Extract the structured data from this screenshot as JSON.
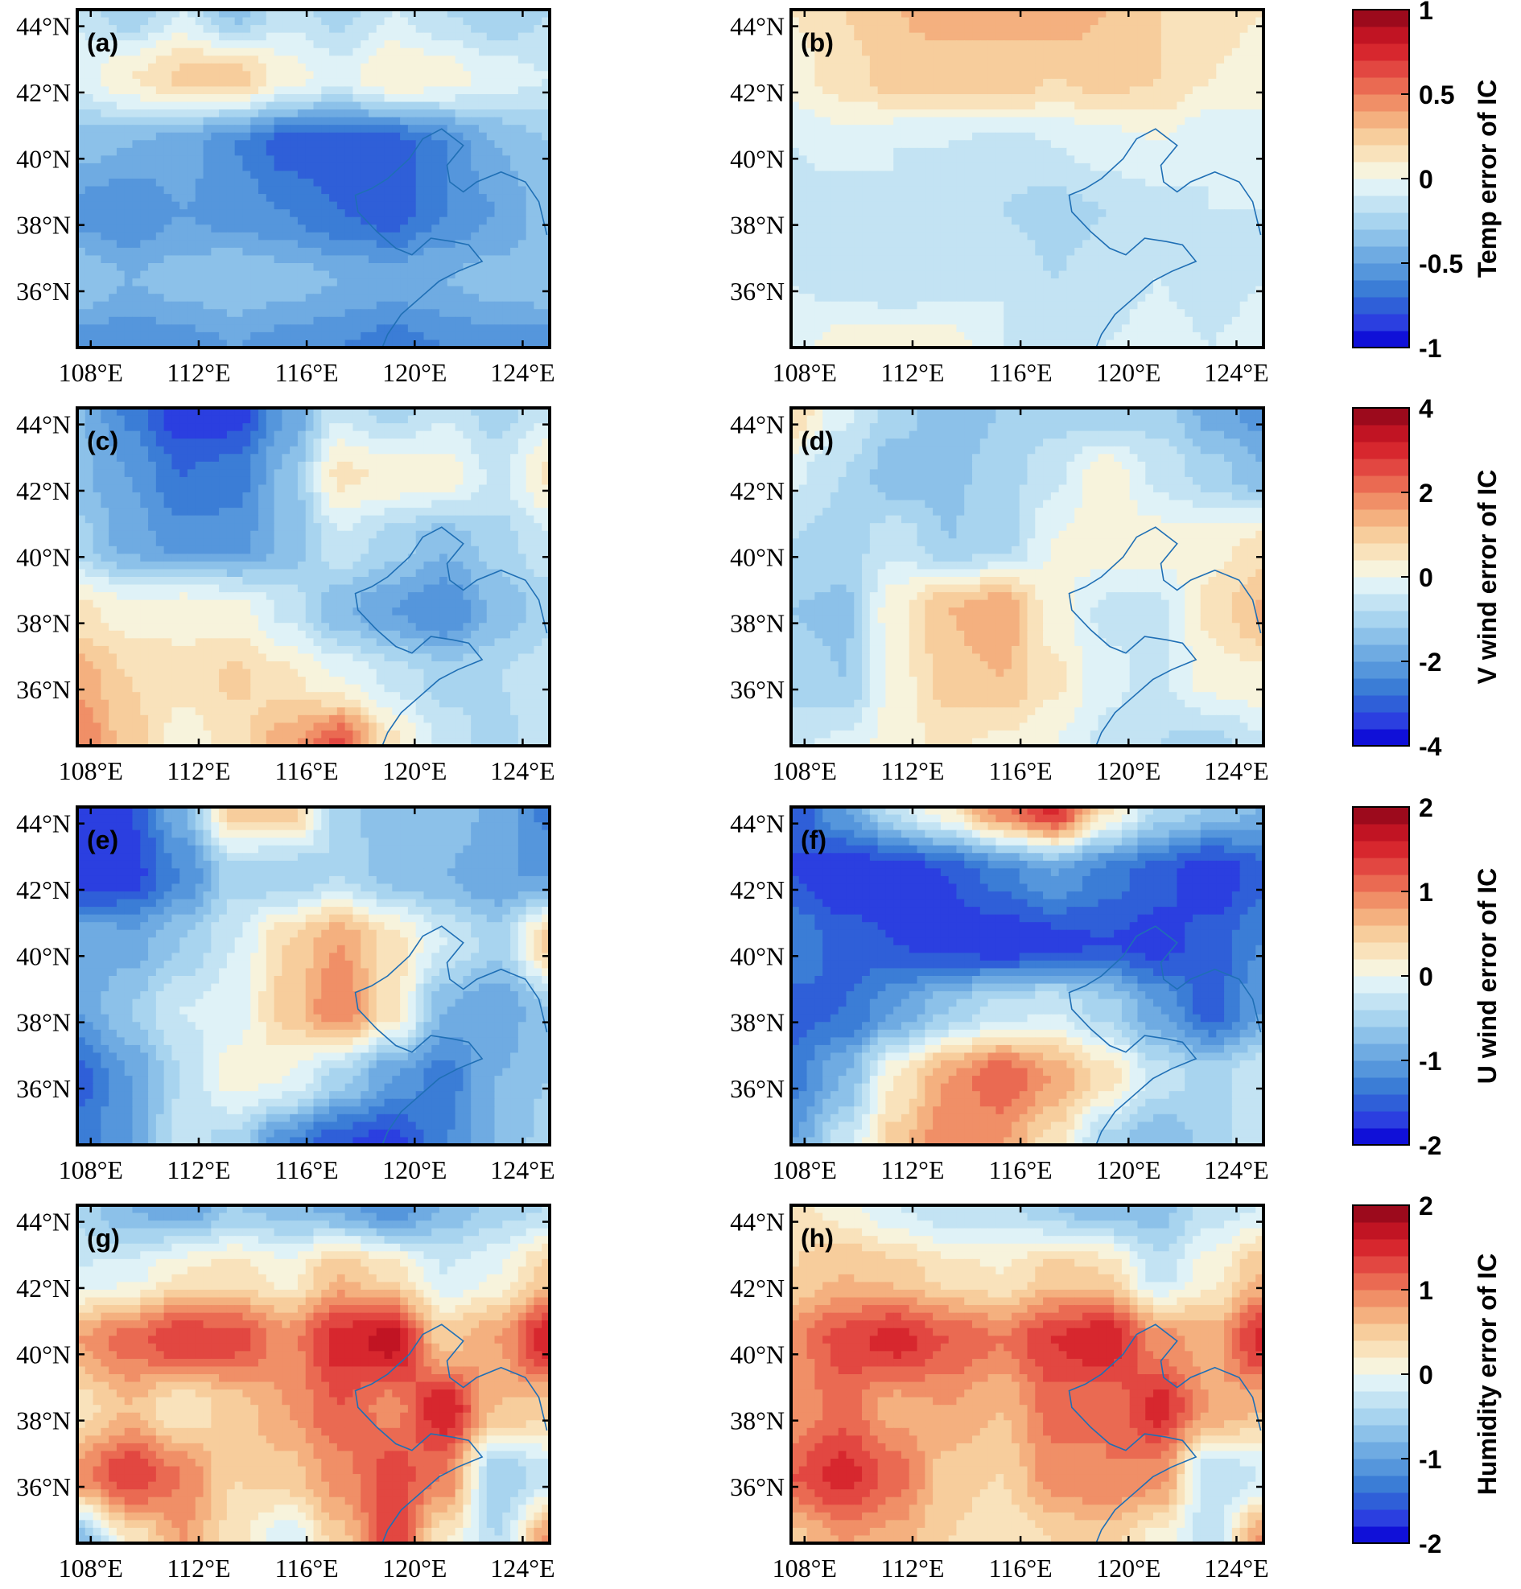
{
  "figure": {
    "lon_range": [
      107.5,
      125.0
    ],
    "lat_range": [
      34.3,
      44.5
    ],
    "lon_ticks": [
      "108°E",
      "112°E",
      "116°E",
      "120°E",
      "124°E"
    ],
    "lat_ticks": [
      "44°N",
      "42°N",
      "40°N",
      "38°N",
      "36°N"
    ],
    "lon_tick_values": [
      108,
      112,
      116,
      120,
      124
    ],
    "lat_tick_values": [
      44,
      42,
      40,
      38,
      36
    ],
    "colormap": {
      "name": "blue-white-red diverging",
      "levels": 20,
      "colors": [
        "#1010d8",
        "#2b3fe0",
        "#2f5fd8",
        "#3b7dd6",
        "#5596dc",
        "#6fabe2",
        "#8cc1e9",
        "#a8d4ef",
        "#c3e3f3",
        "#dff2f7",
        "#f7f3dc",
        "#f9e2bb",
        "#f7cd9c",
        "#f4b07f",
        "#f08f67",
        "#ea6a52",
        "#e24741",
        "#d7272e",
        "#c11423",
        "#9c0a1c"
      ]
    },
    "rows": [
      {
        "colorbar_label": "Temp error of IC",
        "colorbar_ticks": [
          "1",
          "0.5",
          "0",
          "-0.5",
          "-1"
        ],
        "colorbar_range": [
          -1,
          1
        ],
        "panels": [
          {
            "label": "(a)",
            "field": [
              [
                -0.12,
                -0.3,
                -0.1,
                -0.35,
                -0.15,
                -0.25,
                -0.1,
                -0.2,
                -0.3,
                -0.2
              ],
              [
                -0.05,
                0.1,
                0.22,
                0.25,
                0.05,
                -0.05,
                0.1,
                0.05,
                -0.05,
                -0.1
              ],
              [
                -0.35,
                -0.4,
                -0.45,
                -0.6,
                -0.75,
                -0.8,
                -0.75,
                -0.6,
                -0.4,
                -0.3
              ],
              [
                -0.55,
                -0.6,
                -0.5,
                -0.55,
                -0.6,
                -0.7,
                -0.75,
                -0.6,
                -0.5,
                -0.35
              ],
              [
                -0.3,
                -0.4,
                -0.35,
                -0.3,
                -0.35,
                -0.4,
                -0.45,
                -0.4,
                -0.35,
                -0.3
              ],
              [
                -0.55,
                -0.6,
                -0.55,
                -0.5,
                -0.55,
                -0.6,
                -0.65,
                -0.6,
                -0.55,
                -0.6
              ]
            ]
          },
          {
            "label": "(b)",
            "field": [
              [
                0.1,
                0.2,
                0.3,
                0.35,
                0.3,
                0.4,
                0.3,
                0.2,
                0.15,
                0.1
              ],
              [
                0.05,
                0.15,
                0.25,
                0.25,
                0.3,
                0.2,
                0.25,
                0.2,
                0.1,
                0.05
              ],
              [
                -0.1,
                -0.05,
                -0.1,
                -0.1,
                -0.15,
                -0.1,
                -0.05,
                0.0,
                -0.1,
                -0.05
              ],
              [
                -0.15,
                -0.2,
                -0.1,
                -0.15,
                -0.2,
                -0.25,
                -0.2,
                -0.15,
                -0.1,
                -0.1
              ],
              [
                -0.1,
                -0.15,
                -0.2,
                -0.15,
                -0.1,
                -0.2,
                -0.15,
                -0.1,
                -0.15,
                -0.1
              ],
              [
                -0.05,
                0.05,
                0.1,
                0.05,
                -0.1,
                -0.15,
                -0.1,
                -0.05,
                -0.1,
                -0.05
              ]
            ]
          }
        ]
      },
      {
        "colorbar_label": "V wind error of IC",
        "colorbar_ticks": [
          "4",
          "2",
          "0",
          "-2",
          "-4"
        ],
        "colorbar_range": [
          -4,
          4
        ],
        "panels": [
          {
            "label": "(c)",
            "field": [
              [
                -1.5,
                -2.5,
                -3.6,
                -3.5,
                -2.0,
                -0.5,
                -1.0,
                -0.5,
                -1.0,
                -0.5
              ],
              [
                -1.5,
                -2.0,
                -2.8,
                -2.6,
                -1.5,
                0.5,
                0.3,
                0.2,
                -0.5,
                0.5
              ],
              [
                -1.0,
                -1.8,
                -2.2,
                -2.2,
                -1.5,
                -0.5,
                -1.0,
                -1.5,
                -1.0,
                -0.5
              ],
              [
                0.5,
                0.2,
                0.3,
                0.2,
                -0.5,
                -1.5,
                -2.0,
                -2.4,
                -1.5,
                -1.0
              ],
              [
                1.5,
                0.8,
                0.5,
                0.9,
                0.5,
                0.0,
                -0.5,
                -1.0,
                -0.8,
                -0.5
              ],
              [
                2.0,
                1.0,
                0.2,
                0.5,
                1.5,
                2.5,
                0.5,
                -0.5,
                -1.0,
                -0.5
              ]
            ]
          },
          {
            "label": "(d)",
            "field": [
              [
                0.8,
                -0.3,
                -1.0,
                -1.5,
                -1.2,
                -1.0,
                -1.2,
                -1.0,
                -1.8,
                -2.2
              ],
              [
                -0.3,
                -0.8,
                -1.5,
                -1.3,
                -1.0,
                -0.5,
                0.3,
                -0.5,
                -1.0,
                -1.5
              ],
              [
                -0.8,
                -1.0,
                -0.5,
                -1.2,
                -1.0,
                0.0,
                0.3,
                0.2,
                0.3,
                0.5
              ],
              [
                -1.2,
                -1.3,
                0.3,
                1.2,
                1.6,
                0.2,
                -0.5,
                -0.5,
                0.5,
                1.3
              ],
              [
                -1.0,
                -1.2,
                0.2,
                1.0,
                1.2,
                0.5,
                -0.3,
                -0.5,
                0.2,
                0.3
              ],
              [
                -0.5,
                -0.3,
                0.2,
                0.5,
                0.3,
                0.0,
                -0.5,
                -0.8,
                -1.0,
                -0.5
              ]
            ]
          }
        ]
      },
      {
        "colorbar_label": "U wind error of IC",
        "colorbar_ticks": [
          "2",
          "1",
          "0",
          "-1",
          "-2"
        ],
        "colorbar_range": [
          -2,
          2
        ],
        "panels": [
          {
            "label": "(e)",
            "field": [
              [
                -1.8,
                -1.6,
                -0.8,
                0.5,
                0.6,
                -0.5,
                -0.8,
                -0.6,
                -0.9,
                -1.3
              ],
              [
                -1.8,
                -1.7,
                -1.2,
                -0.5,
                -0.6,
                -0.4,
                -0.7,
                -0.8,
                -1.0,
                -1.0
              ],
              [
                -0.8,
                -0.9,
                -0.6,
                -0.2,
                0.4,
                0.8,
                0.3,
                -0.2,
                -0.5,
                0.5
              ],
              [
                -1.0,
                -0.6,
                -0.2,
                -0.1,
                0.5,
                1.0,
                0.3,
                -0.8,
                -1.0,
                -0.6
              ],
              [
                -1.5,
                -1.0,
                -0.4,
                0.1,
                0.0,
                -0.5,
                -1.0,
                -1.3,
                -0.8,
                -0.6
              ],
              [
                -1.3,
                -1.0,
                -0.3,
                -0.5,
                -1.2,
                -1.6,
                -1.7,
                -1.2,
                -0.8,
                -0.5
              ]
            ]
          },
          {
            "label": "(f)",
            "field": [
              [
                -1.6,
                -1.0,
                -0.3,
                0.2,
                1.0,
                1.5,
                0.3,
                -0.4,
                -0.6,
                -0.8
              ],
              [
                -1.6,
                -1.8,
                -1.8,
                -1.6,
                -1.3,
                -1.0,
                -1.3,
                -1.5,
                -1.8,
                -1.5
              ],
              [
                -1.2,
                -1.5,
                -1.6,
                -1.7,
                -1.8,
                -1.7,
                -1.6,
                -1.7,
                -1.5,
                -1.2
              ],
              [
                -1.5,
                -1.4,
                -1.0,
                -0.6,
                -0.3,
                -0.2,
                -0.5,
                -1.0,
                -1.5,
                -1.0
              ],
              [
                -1.3,
                -0.8,
                0.2,
                0.8,
                1.2,
                0.8,
                0.3,
                -0.3,
                -0.5,
                -0.2
              ],
              [
                -1.0,
                -0.3,
                0.5,
                1.0,
                0.8,
                0.3,
                -0.5,
                -0.8,
                -0.5,
                -0.2
              ]
            ]
          }
        ]
      },
      {
        "colorbar_label": "Humidity error of IC",
        "colorbar_ticks": [
          "2",
          "1",
          "0",
          "-1",
          "-2"
        ],
        "colorbar_range": [
          -2,
          2
        ],
        "panels": [
          {
            "label": "(g)",
            "field": [
              [
                -0.5,
                -0.8,
                -1.0,
                -0.6,
                -0.7,
                -0.9,
                -1.2,
                -0.8,
                -0.5,
                -0.4
              ],
              [
                -0.2,
                -0.1,
                0.2,
                0.3,
                0.1,
                0.6,
                0.3,
                -0.2,
                0.0,
                0.5
              ],
              [
                0.8,
                1.1,
                1.4,
                1.3,
                0.9,
                1.5,
                1.7,
                0.5,
                0.8,
                1.6
              ],
              [
                0.3,
                0.6,
                0.2,
                0.5,
                0.8,
                1.2,
                0.9,
                1.6,
                0.6,
                0.5
              ],
              [
                0.9,
                1.4,
                1.0,
                0.4,
                0.5,
                0.9,
                1.3,
                1.0,
                -0.6,
                -0.3
              ],
              [
                -0.8,
                0.2,
                0.8,
                0.3,
                -0.2,
                0.5,
                1.4,
                0.2,
                -0.4,
                0.9
              ]
            ]
          },
          {
            "label": "(h)",
            "field": [
              [
                0.3,
                0.1,
                -0.2,
                -0.4,
                -0.3,
                -0.6,
                -0.8,
                -0.7,
                -0.3,
                -0.2
              ],
              [
                0.4,
                0.6,
                0.5,
                0.3,
                0.2,
                0.5,
                0.4,
                -0.3,
                0.1,
                0.6
              ],
              [
                0.9,
                1.3,
                1.5,
                1.2,
                1.0,
                1.4,
                1.6,
                0.9,
                0.7,
                1.5
              ],
              [
                0.8,
                1.1,
                0.7,
                0.8,
                0.6,
                1.1,
                1.0,
                1.5,
                0.8,
                0.6
              ],
              [
                1.2,
                1.5,
                1.1,
                0.5,
                0.4,
                0.9,
                1.0,
                0.9,
                -0.4,
                -0.2
              ],
              [
                0.5,
                0.8,
                0.7,
                0.4,
                0.2,
                0.4,
                0.5,
                0.1,
                -0.3,
                0.9
              ]
            ]
          }
        ]
      }
    ]
  }
}
